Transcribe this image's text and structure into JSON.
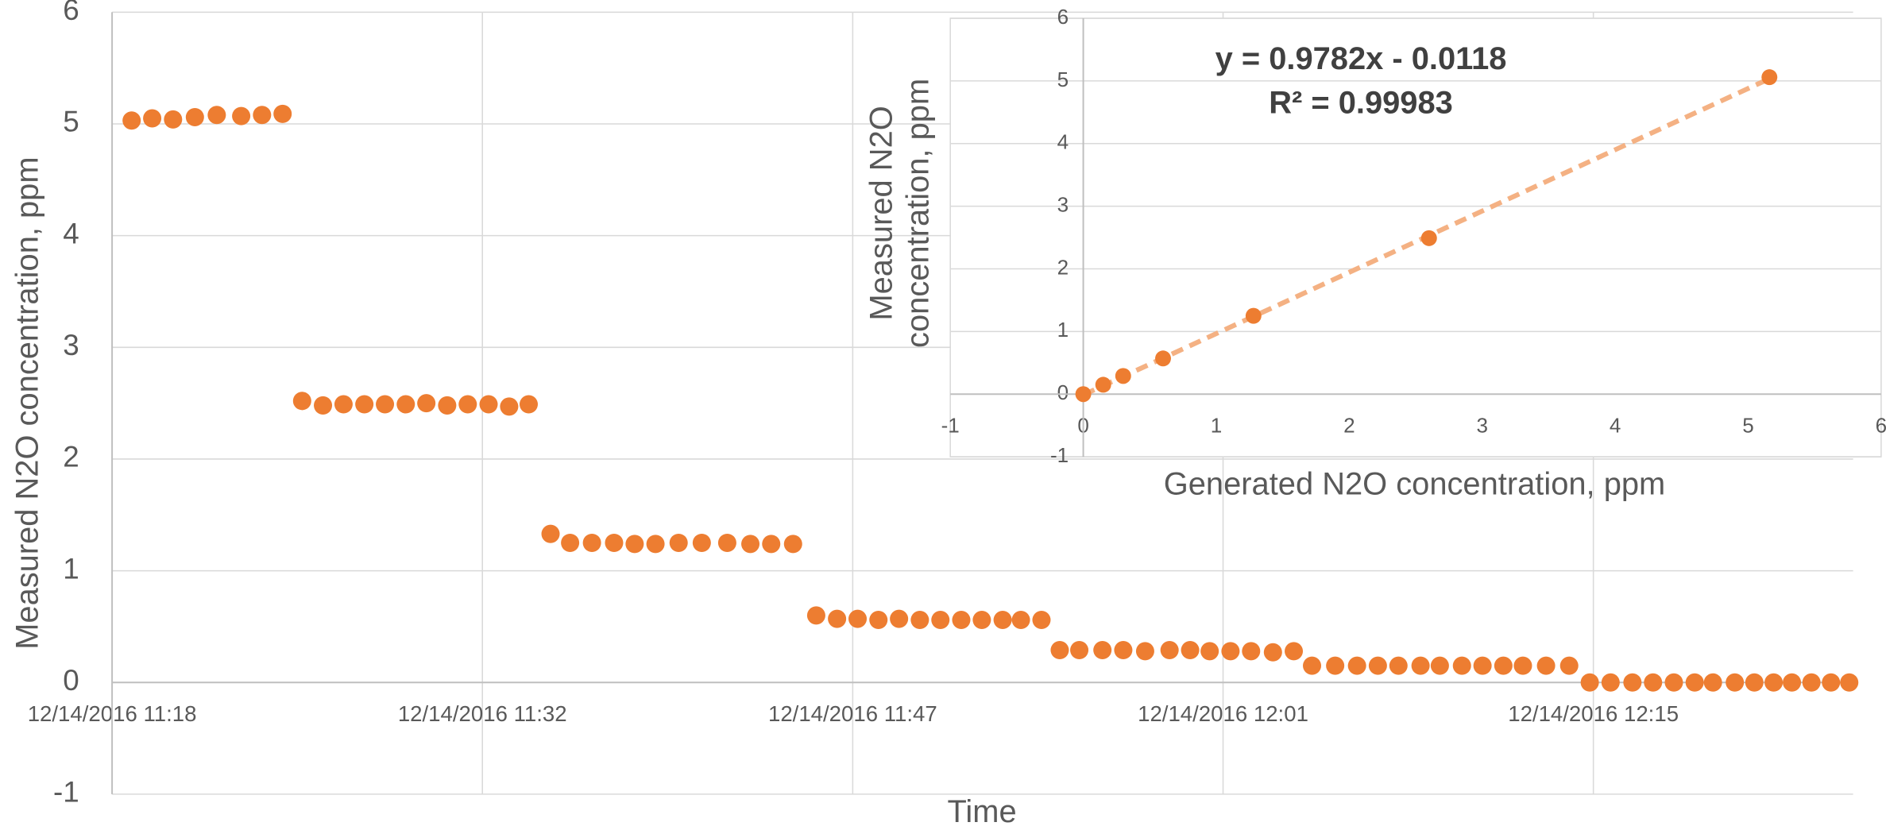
{
  "chart_data": [
    {
      "type": "scatter",
      "x_label": "Time",
      "y_label": "Measured N2O concentration, ppm",
      "x": [
        678.76,
        679.56,
        680.37,
        681.22,
        682.07,
        683.02,
        683.83,
        684.63,
        685.39,
        686.2,
        687.0,
        687.81,
        688.61,
        689.42,
        690.22,
        691.03,
        691.83,
        692.64,
        693.44,
        694.2,
        695.05,
        695.81,
        696.66,
        697.52,
        698.32,
        699.13,
        700.03,
        700.93,
        701.92,
        702.82,
        703.63,
        704.48,
        705.38,
        706.19,
        706.99,
        707.8,
        708.6,
        709.41,
        710.21,
        711.02,
        711.82,
        712.63,
        713.34,
        714.14,
        714.85,
        715.61,
        716.51,
        717.32,
        718.17,
        719.12,
        719.92,
        720.68,
        721.49,
        722.29,
        723.14,
        723.95,
        724.66,
        725.56,
        726.41,
        727.22,
        728.02,
        728.88,
        729.63,
        730.49,
        731.29,
        732.1,
        732.86,
        733.76,
        734.66,
        735.46,
        736.27,
        737.12,
        737.92,
        738.73,
        739.54,
        740.25,
        741.1,
        741.86,
        742.61,
        743.32,
        744.08,
        744.84,
        745.55
      ],
      "values": [
        5.03,
        5.05,
        5.04,
        5.06,
        5.08,
        5.07,
        5.08,
        5.09,
        2.52,
        2.48,
        2.49,
        2.49,
        2.49,
        2.49,
        2.5,
        2.48,
        2.49,
        2.49,
        2.47,
        2.49,
        1.33,
        1.25,
        1.25,
        1.25,
        1.24,
        1.24,
        1.25,
        1.25,
        1.25,
        1.24,
        1.24,
        1.24,
        0.6,
        0.57,
        0.57,
        0.56,
        0.57,
        0.56,
        0.56,
        0.56,
        0.56,
        0.56,
        0.56,
        0.56,
        0.29,
        0.29,
        0.29,
        0.29,
        0.28,
        0.29,
        0.29,
        0.28,
        0.28,
        0.28,
        0.27,
        0.28,
        0.15,
        0.15,
        0.15,
        0.15,
        0.15,
        0.15,
        0.15,
        0.15,
        0.15,
        0.15,
        0.15,
        0.15,
        0.15,
        0,
        0,
        0,
        0,
        0,
        0,
        0,
        0,
        0,
        0,
        0,
        0,
        0,
        0
      ],
      "color": "#ed7d31",
      "xlim": [
        678,
        745.7
      ],
      "xticks": [
        {
          "value": 678,
          "label": "12/14/2016 11:18"
        },
        {
          "value": 692.4,
          "label": "12/14/2016 11:32"
        },
        {
          "value": 706.8,
          "label": "12/14/2016 11:47"
        },
        {
          "value": 721.2,
          "label": "12/14/2016 12:01"
        },
        {
          "value": 735.6,
          "label": "12/14/2016 12:15"
        }
      ],
      "ylim": [
        -1,
        6
      ],
      "yticks": [
        -1,
        0,
        1,
        2,
        3,
        4,
        5,
        6
      ],
      "grid": true
    },
    {
      "type": "scatter",
      "x_label": "Generated N2O concentration, ppm",
      "y_label": "Measured N2O concentration, ppm",
      "x": [
        0,
        0.15,
        0.3,
        0.6,
        1.28,
        2.6,
        5.16
      ],
      "values": [
        0,
        0.15,
        0.29,
        0.57,
        1.25,
        2.49,
        5.06
      ],
      "color": "#ed7d31",
      "trendline": {
        "slope": 0.9782,
        "intercept": -0.0118,
        "equation": "y = 0.9782x - 0.0118",
        "r2": "R² = 0.99983",
        "color": "#f4b183"
      },
      "xlim": [
        -1,
        6
      ],
      "xticks": [
        -1,
        0,
        1,
        2,
        3,
        4,
        5,
        6
      ],
      "ylim": [
        -1,
        6
      ],
      "yticks": [
        -1,
        0,
        1,
        2,
        3,
        4,
        5,
        6
      ],
      "grid": "y"
    }
  ]
}
